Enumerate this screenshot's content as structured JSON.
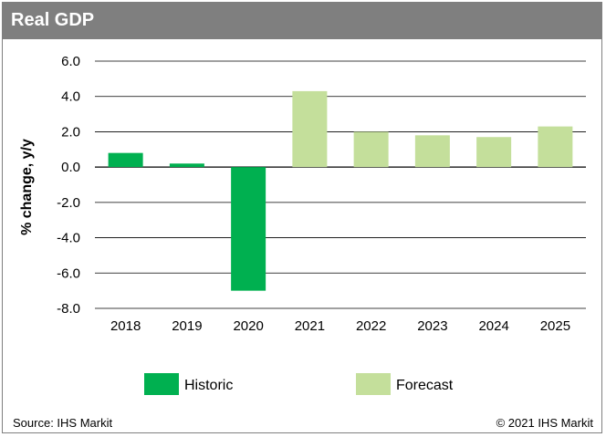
{
  "header": {
    "title": "Real GDP"
  },
  "footer": {
    "source": "Source: IHS Markit",
    "copyright": "© 2021 IHS Markit"
  },
  "colors": {
    "historic": "#00b050",
    "forecast": "#c4df9b",
    "header_bg": "#7f7f7f",
    "grid": "#000000"
  },
  "chart_data": {
    "type": "bar",
    "title": "Real GDP",
    "ylabel": "% change, y/y",
    "xlabel": "",
    "categories": [
      "2018",
      "2019",
      "2020",
      "2021",
      "2022",
      "2023",
      "2024",
      "2025"
    ],
    "values": [
      0.8,
      0.2,
      -7.0,
      4.3,
      2.0,
      1.8,
      1.7,
      2.3
    ],
    "bar_type": [
      "Historic",
      "Historic",
      "Historic",
      "Forecast",
      "Forecast",
      "Forecast",
      "Forecast",
      "Forecast"
    ],
    "ylim": [
      -8.0,
      6.0
    ],
    "yticks": [
      "6.0",
      "4.0",
      "2.0",
      "0.0",
      "-2.0",
      "-4.0",
      "-6.0",
      "-8.0"
    ],
    "grid": true,
    "legend": {
      "placement": "bottom",
      "entries": [
        {
          "name": "Historic",
          "color_key": "historic"
        },
        {
          "name": "Forecast",
          "color_key": "forecast"
        }
      ]
    }
  }
}
